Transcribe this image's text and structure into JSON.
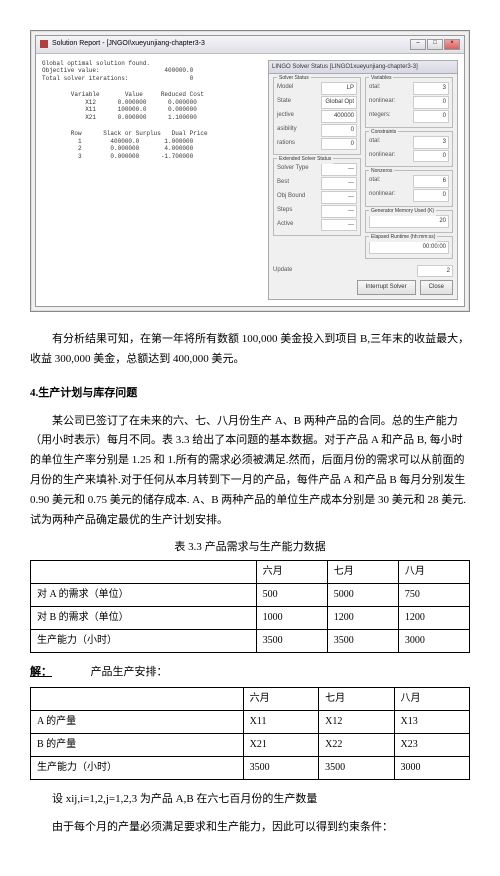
{
  "screenshot": {
    "title": "Solution Report - [JNGOI\\xueyunjiang-chapter3-3",
    "header_lines": "Global optimal solution found.\nObjective value:                  400000.0\nTotal solver iterations:                 0",
    "var_table": "        Variable       Value     Reduced Cost\n            X12      0.000000      0.000000\n            X11      100000.0      0.000000\n            X21      0.000000      1.100000",
    "row_table": "        Row      Slack or Surplus   Dual Price\n          1        400000.0       1.000000\n          2        0.000000       4.000000\n          3        0.000000      -1.700000",
    "status": {
      "title": "LINGO Solver Status [LINGO1xueyunjiang-chapter3-3]",
      "solver": {
        "model": "LP",
        "state": "Global Opt",
        "objective": "400000",
        "infeasibility": "0",
        "iterations": "0"
      },
      "ext": {
        "type": "---",
        "best_obj": "---",
        "obj_bound": "---",
        "steps": "---",
        "active": "---"
      },
      "vars": {
        "total": "3",
        "nonlinear": "0",
        "integers": "0"
      },
      "cons": {
        "total": "3",
        "nonlinear": "0"
      },
      "nonzeros": {
        "total": "6",
        "nonlinear": "0"
      },
      "mem": "20",
      "runtime": "00:00:00",
      "update": "2",
      "btn_int": "Interrupt Solver",
      "btn_close": "Close"
    }
  },
  "p1": "有分析结果可知，在第一年将所有数额 100,000 美金投入到项目 B,三年末的收益最大，收益 300,000 美金，总额达到 400,000 美元。",
  "sec4": "4.生产计划与库存问题",
  "p2": "某公司已签订了在未来的六、七、八月份生产 A、B 两种产品的合同。总的生产能力（用小时表示）每月不同。表 3.3 给出了本问题的基本数据。对于产品 A 和产品 B, 每小时的单位生产率分别是 1.25 和 1.所有的需求必须被满足.然而，后面月份的需求可以从前面的月份的生产来填补.对于任何从本月转到下一月的产品，每件产品 A 和产品 B 每月分别发生 0.90 美元和 0.75 美元的储存成本. A、B 两种产品的单位生产成本分别是 30 美元和 28 美元. 试为两种产品确定最优的生产计划安排。",
  "t1": {
    "caption": "表 3.3 产品需求与生产能力数据",
    "h": [
      "",
      "六月",
      "七月",
      "八月"
    ],
    "r": [
      [
        "对 A 的需求（单位）",
        "500",
        "5000",
        "750"
      ],
      [
        "对 B 的需求（单位）",
        "1000",
        "1200",
        "1200"
      ],
      [
        "生产能力（小时）",
        "3500",
        "3500",
        "3000"
      ]
    ]
  },
  "solve_label": "解：",
  "t2": {
    "caption": "产品生产安排：",
    "h": [
      "",
      "六月",
      "七月",
      "八月"
    ],
    "r": [
      [
        "A 的产量",
        "X11",
        "X12",
        "X13"
      ],
      [
        "B 的产量",
        "X21",
        "X22",
        "X23"
      ],
      [
        "生产能力（小时）",
        "3500",
        "3500",
        "3000"
      ]
    ]
  },
  "p3": "设 xij,i=1,2,j=1,2,3 为产品 A,B 在六七百月份的生产数量",
  "p4": "由于每个月的产量必须满足要求和生产能力，因此可以得到约束条件："
}
